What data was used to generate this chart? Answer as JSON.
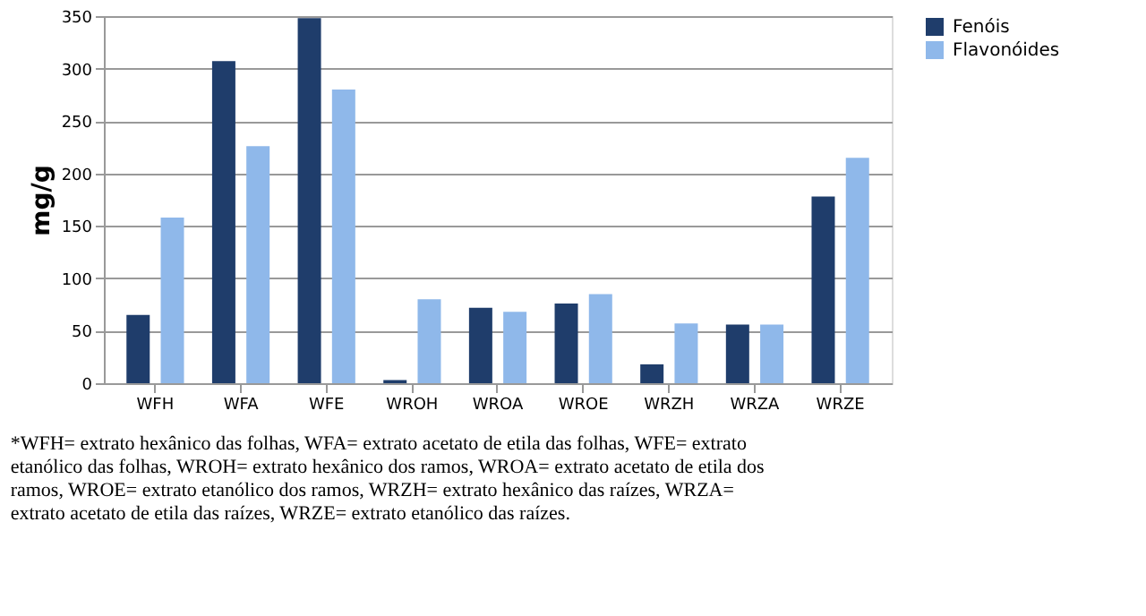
{
  "chart_data": {
    "type": "bar",
    "ylabel": "mg/g",
    "categories": [
      "WFH",
      "WFA",
      "WFE",
      "WROH",
      "WROA",
      "WROE",
      "WRZH",
      "WRZA",
      "WRZE"
    ],
    "series": [
      {
        "name": "Fenóis",
        "color": "#1f3d6b",
        "values": [
          65,
          307,
          348,
          3,
          72,
          76,
          18,
          56,
          178
        ]
      },
      {
        "name": "Flavonóides",
        "color": "#8fb8ea",
        "values": [
          158,
          226,
          280,
          80,
          68,
          85,
          57,
          56,
          215
        ]
      }
    ],
    "ylim": [
      0,
      350
    ],
    "yticks": [
      0,
      50,
      100,
      150,
      200,
      250,
      300,
      350
    ],
    "grid": "y",
    "legend": "right",
    "annotations": [
      "*WFH= extrato hexânico das folhas, WFA= extrato acetato de etila das folhas, WFE= extrato",
      "etanólico das folhas, WROH= extrato hexânico dos ramos, WROA= extrato acetato de etila dos",
      "ramos, WROE= extrato etanólico dos ramos, WRZH= extrato hexânico das raízes, WRZA=",
      "extrato acetato de etila das raízes, WRZE= extrato etanólico das raízes."
    ]
  }
}
